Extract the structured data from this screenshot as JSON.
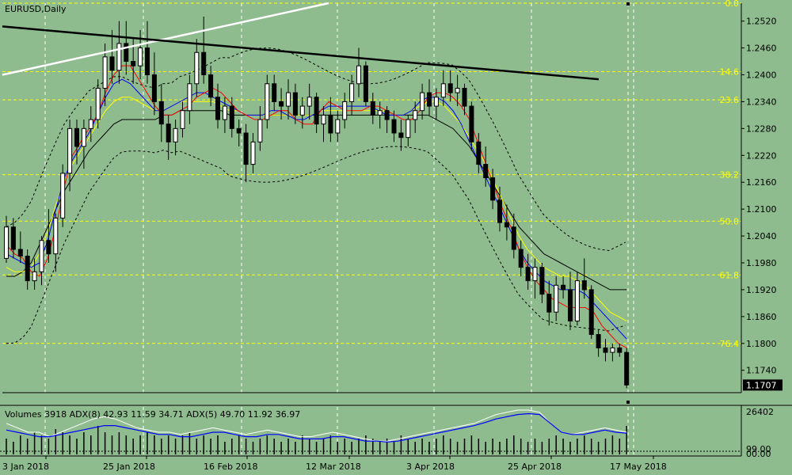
{
  "chart_title": "EURUSD,Daily",
  "indicator_title": "Volumes 3918 ADX(8) 42.93 11.59 34.71 ADX(5) 49.70 11.92 36.97",
  "colors": {
    "background": "#8fbc8f",
    "bull_candle": "#000000",
    "bear_candle": "#000000",
    "grid": "#ffffff",
    "fib": "#ffff00",
    "ma_red": "#ff0000",
    "ma_blue": "#0000ff",
    "ma_yellow": "#ffff00",
    "ma_black": "#000000",
    "trend_white": "#ffffff",
    "trend_black": "#000000"
  },
  "chart_data": {
    "type": "candlestick",
    "symbol": "EURUSD",
    "timeframe": "Daily",
    "ylim": [
      1.169,
      1.256
    ],
    "y_ticks": [
      "1.2520",
      "1.2460",
      "1.2400",
      "1.2340",
      "1.2280",
      "1.2220",
      "1.2160",
      "1.2100",
      "1.2040",
      "1.1980",
      "1.1920",
      "1.1860",
      "1.1800",
      "1.1740"
    ],
    "current_price": "1.1707",
    "x_labels": [
      "3 Jan 2018",
      "25 Jan 2018",
      "16 Feb 2018",
      "12 Mar 2018",
      "3 Apr 2018",
      "25 Apr 2018",
      "17 May 2018"
    ],
    "fib_levels": [
      {
        "label": "0.0",
        "price": 1.256
      },
      {
        "label": "14.6",
        "price": 1.2407
      },
      {
        "label": "23.6",
        "price": 1.2344
      },
      {
        "label": "38.2",
        "price": 1.2177
      },
      {
        "label": "50.0",
        "price": 1.2073
      },
      {
        "label": "61.8",
        "price": 1.1953
      },
      {
        "label": "76.4",
        "price": 1.18
      }
    ],
    "candles": [
      [
        1.199,
        1.2085,
        1.198,
        1.206
      ],
      [
        1.206,
        1.208,
        1.199,
        1.201
      ],
      [
        1.201,
        1.205,
        1.198,
        1.1995
      ],
      [
        1.1995,
        1.201,
        1.192,
        1.194
      ],
      [
        1.194,
        1.199,
        1.192,
        1.196
      ],
      [
        1.196,
        1.204,
        1.193,
        1.203
      ],
      [
        1.203,
        1.21,
        1.198,
        1.2
      ],
      [
        1.2,
        1.209,
        1.196,
        1.208
      ],
      [
        1.208,
        1.22,
        1.206,
        1.218
      ],
      [
        1.218,
        1.23,
        1.214,
        1.228
      ],
      [
        1.228,
        1.23,
        1.22,
        1.224
      ],
      [
        1.224,
        1.23,
        1.219,
        1.228
      ],
      [
        1.228,
        1.233,
        1.225,
        1.23
      ],
      [
        1.23,
        1.239,
        1.228,
        1.237
      ],
      [
        1.237,
        1.247,
        1.233,
        1.244
      ],
      [
        1.244,
        1.25,
        1.238,
        1.241
      ],
      [
        1.241,
        1.252,
        1.238,
        1.247
      ],
      [
        1.247,
        1.252,
        1.24,
        1.243
      ],
      [
        1.243,
        1.248,
        1.238,
        1.242
      ],
      [
        1.242,
        1.25,
        1.239,
        1.246
      ],
      [
        1.246,
        1.252,
        1.238,
        1.24
      ],
      [
        1.24,
        1.245,
        1.231,
        1.234
      ],
      [
        1.234,
        1.238,
        1.225,
        1.229
      ],
      [
        1.229,
        1.231,
        1.221,
        1.225
      ],
      [
        1.225,
        1.23,
        1.222,
        1.228
      ],
      [
        1.228,
        1.234,
        1.226,
        1.232
      ],
      [
        1.232,
        1.24,
        1.229,
        1.238
      ],
      [
        1.238,
        1.248,
        1.235,
        1.245
      ],
      [
        1.245,
        1.253,
        1.238,
        1.24
      ],
      [
        1.24,
        1.242,
        1.233,
        1.235
      ],
      [
        1.235,
        1.238,
        1.228,
        1.23
      ],
      [
        1.23,
        1.235,
        1.227,
        1.233
      ],
      [
        1.233,
        1.235,
        1.226,
        1.228
      ],
      [
        1.228,
        1.23,
        1.224,
        1.227
      ],
      [
        1.227,
        1.229,
        1.216,
        1.22
      ],
      [
        1.22,
        1.227,
        1.218,
        1.225
      ],
      [
        1.225,
        1.233,
        1.223,
        1.23
      ],
      [
        1.23,
        1.24,
        1.228,
        1.238
      ],
      [
        1.238,
        1.24,
        1.232,
        1.234
      ],
      [
        1.234,
        1.237,
        1.23,
        1.233
      ],
      [
        1.233,
        1.239,
        1.23,
        1.236
      ],
      [
        1.236,
        1.238,
        1.229,
        1.231
      ],
      [
        1.231,
        1.235,
        1.228,
        1.233
      ],
      [
        1.233,
        1.238,
        1.23,
        1.235
      ],
      [
        1.235,
        1.236,
        1.227,
        1.229
      ],
      [
        1.229,
        1.233,
        1.225,
        1.231
      ],
      [
        1.231,
        1.235,
        1.225,
        1.227
      ],
      [
        1.227,
        1.232,
        1.225,
        1.23
      ],
      [
        1.23,
        1.236,
        1.228,
        1.234
      ],
      [
        1.234,
        1.24,
        1.231,
        1.238
      ],
      [
        1.238,
        1.246,
        1.235,
        1.242
      ],
      [
        1.242,
        1.243,
        1.233,
        1.234
      ],
      [
        1.234,
        1.236,
        1.229,
        1.231
      ],
      [
        1.231,
        1.234,
        1.228,
        1.232
      ],
      [
        1.232,
        1.233,
        1.227,
        1.23
      ],
      [
        1.23,
        1.232,
        1.225,
        1.227
      ],
      [
        1.227,
        1.23,
        1.223,
        1.226
      ],
      [
        1.226,
        1.231,
        1.224,
        1.23
      ],
      [
        1.23,
        1.234,
        1.227,
        1.232
      ],
      [
        1.232,
        1.238,
        1.23,
        1.236
      ],
      [
        1.236,
        1.239,
        1.231,
        1.233
      ],
      [
        1.233,
        1.237,
        1.23,
        1.235
      ],
      [
        1.235,
        1.241,
        1.233,
        1.238
      ],
      [
        1.238,
        1.241,
        1.234,
        1.236
      ],
      [
        1.236,
        1.24,
        1.233,
        1.237
      ],
      [
        1.237,
        1.238,
        1.231,
        1.233
      ],
      [
        1.233,
        1.234,
        1.223,
        1.225
      ],
      [
        1.225,
        1.227,
        1.218,
        1.22
      ],
      [
        1.22,
        1.224,
        1.215,
        1.217
      ],
      [
        1.217,
        1.219,
        1.21,
        1.212
      ],
      [
        1.212,
        1.215,
        1.205,
        1.207
      ],
      [
        1.207,
        1.211,
        1.203,
        1.206
      ],
      [
        1.206,
        1.209,
        1.199,
        1.201
      ],
      [
        1.201,
        1.203,
        1.195,
        1.197
      ],
      [
        1.197,
        1.2,
        1.192,
        1.194
      ],
      [
        1.194,
        1.199,
        1.19,
        1.197
      ],
      [
        1.197,
        1.198,
        1.189,
        1.191
      ],
      [
        1.191,
        1.194,
        1.184,
        1.187
      ],
      [
        1.187,
        1.195,
        1.185,
        1.193
      ],
      [
        1.193,
        1.195,
        1.19,
        1.192
      ],
      [
        1.192,
        1.196,
        1.183,
        1.185
      ],
      [
        1.185,
        1.196,
        1.184,
        1.194
      ],
      [
        1.194,
        1.199,
        1.19,
        1.192
      ],
      [
        1.192,
        1.193,
        1.181,
        1.182
      ],
      [
        1.182,
        1.183,
        1.177,
        1.179
      ],
      [
        1.179,
        1.181,
        1.176,
        1.178
      ],
      [
        1.178,
        1.18,
        1.176,
        1.179
      ],
      [
        1.179,
        1.18,
        1.177,
        1.178
      ],
      [
        1.178,
        1.179,
        1.17,
        1.1707
      ]
    ],
    "ma_red": [
      1.202,
      1.2,
      1.199,
      1.196,
      1.195,
      1.199,
      1.206,
      1.215,
      1.222,
      1.225,
      1.228,
      1.231,
      1.236,
      1.24,
      1.242,
      1.242,
      1.239,
      1.236,
      1.233,
      1.231,
      1.231,
      1.232,
      1.233,
      1.235,
      1.236,
      1.237,
      1.236,
      1.234,
      1.232,
      1.231,
      1.23,
      1.23,
      1.231,
      1.232,
      1.232,
      1.23,
      1.229,
      1.229,
      1.232,
      1.234,
      1.233,
      1.232,
      1.232,
      1.232,
      1.233,
      1.233,
      1.232,
      1.231,
      1.23,
      1.23,
      1.232,
      1.235,
      1.236,
      1.236,
      1.235,
      1.233,
      1.23,
      1.225,
      1.22,
      1.215,
      1.21,
      1.206,
      1.201,
      1.197,
      1.194,
      1.192,
      1.19,
      1.189,
      1.188,
      1.188,
      1.188,
      1.187,
      1.184,
      1.182,
      1.18,
      1.179
    ],
    "ma_blue": [
      1.2,
      1.199,
      1.198,
      1.197,
      1.198,
      1.203,
      1.21,
      1.217,
      1.221,
      1.224,
      1.227,
      1.231,
      1.235,
      1.238,
      1.239,
      1.238,
      1.236,
      1.234,
      1.232,
      1.232,
      1.233,
      1.234,
      1.235,
      1.236,
      1.236,
      1.235,
      1.234,
      1.233,
      1.232,
      1.231,
      1.231,
      1.231,
      1.232,
      1.232,
      1.231,
      1.23,
      1.23,
      1.231,
      1.232,
      1.233,
      1.233,
      1.233,
      1.233,
      1.233,
      1.233,
      1.232,
      1.231,
      1.231,
      1.231,
      1.232,
      1.234,
      1.235,
      1.235,
      1.234,
      1.232,
      1.229,
      1.225,
      1.221,
      1.217,
      1.213,
      1.209,
      1.205,
      1.201,
      1.198,
      1.196,
      1.194,
      1.193,
      1.192,
      1.192,
      1.192,
      1.191,
      1.189,
      1.187,
      1.185,
      1.183,
      1.181
    ],
    "ma_yellow": [
      1.197,
      1.196,
      1.196,
      1.197,
      1.2,
      1.205,
      1.211,
      1.216,
      1.22,
      1.223,
      1.226,
      1.229,
      1.232,
      1.234,
      1.235,
      1.235,
      1.234,
      1.233,
      1.232,
      1.232,
      1.233,
      1.234,
      1.234,
      1.234,
      1.234,
      1.234,
      1.233,
      1.232,
      1.232,
      1.231,
      1.231,
      1.231,
      1.231,
      1.231,
      1.231,
      1.231,
      1.231,
      1.231,
      1.232,
      1.232,
      1.232,
      1.232,
      1.232,
      1.232,
      1.232,
      1.232,
      1.232,
      1.231,
      1.231,
      1.232,
      1.233,
      1.234,
      1.234,
      1.233,
      1.231,
      1.229,
      1.226,
      1.223,
      1.22,
      1.216,
      1.212,
      1.208,
      1.204,
      1.201,
      1.199,
      1.197,
      1.196,
      1.195,
      1.195,
      1.194,
      1.193,
      1.191,
      1.189,
      1.187,
      1.186,
      1.185
    ],
    "ma_black": [
      1.195,
      1.195,
      1.196,
      1.198,
      1.202,
      1.206,
      1.21,
      1.214,
      1.217,
      1.22,
      1.223,
      1.225,
      1.227,
      1.229,
      1.23,
      1.23,
      1.23,
      1.23,
      1.23,
      1.231,
      1.231,
      1.232,
      1.232,
      1.232,
      1.232,
      1.232,
      1.232,
      1.231,
      1.231,
      1.231,
      1.231,
      1.231,
      1.231,
      1.231,
      1.231,
      1.231,
      1.231,
      1.231,
      1.231,
      1.231,
      1.231,
      1.231,
      1.231,
      1.231,
      1.231,
      1.231,
      1.231,
      1.231,
      1.231,
      1.231,
      1.231,
      1.231,
      1.23,
      1.229,
      1.228,
      1.226,
      1.224,
      1.221,
      1.218,
      1.215,
      1.212,
      1.209,
      1.206,
      1.204,
      1.202,
      1.2,
      1.199,
      1.198,
      1.197,
      1.196,
      1.195,
      1.194,
      1.193,
      1.192,
      1.192,
      1.192
    ],
    "indicator": {
      "y_ticks": [
        "26402",
        "99.00",
        "00.00"
      ],
      "volumes": [
        0.5,
        0.4,
        0.6,
        0.5,
        0.7,
        0.6,
        0.5,
        0.8,
        0.7,
        0.6,
        0.5,
        0.7,
        0.6,
        0.9,
        0.7,
        0.6,
        0.7,
        0.6,
        0.5,
        0.6,
        0.7,
        0.6,
        0.5,
        0.6,
        0.5,
        0.6,
        0.7,
        0.5,
        0.6,
        0.5,
        0.6,
        0.4,
        0.5,
        0.6,
        0.5,
        0.4,
        0.5,
        0.6,
        0.5,
        0.4,
        0.5,
        0.4,
        0.6,
        0.5,
        0.4,
        0.5,
        0.6,
        0.4,
        0.5,
        0.4,
        0.5,
        0.6,
        0.5,
        0.4,
        0.5,
        0.4,
        0.6,
        0.5,
        0.4,
        0.5,
        0.4,
        0.5,
        0.6,
        0.5,
        0.4,
        0.5,
        0.6,
        0.5,
        0.4,
        0.5,
        0.4,
        0.5,
        0.6,
        0.5,
        0.4,
        0.5,
        0.4,
        0.5,
        0.6,
        0.5,
        0.4,
        0.5,
        0.6,
        0.5,
        0.4,
        0.5,
        0.6,
        0.5,
        0.9
      ],
      "adx_white": [
        0.7,
        0.6,
        0.5,
        0.5,
        0.4,
        0.5,
        0.6,
        0.7,
        0.8,
        0.85,
        0.8,
        0.7,
        0.6,
        0.55,
        0.5,
        0.5,
        0.45,
        0.5,
        0.55,
        0.6,
        0.55,
        0.5,
        0.45,
        0.5,
        0.55,
        0.5,
        0.45,
        0.4,
        0.4,
        0.45,
        0.5,
        0.45,
        0.4,
        0.35,
        0.3,
        0.3,
        0.35,
        0.4,
        0.45,
        0.5,
        0.55,
        0.6,
        0.65,
        0.7,
        0.8,
        0.9,
        0.95,
        1.0,
        1.0,
        0.95,
        0.7,
        0.5,
        0.45,
        0.5,
        0.55,
        0.6,
        0.55,
        0.5
      ],
      "adx_blue": [
        0.55,
        0.5,
        0.45,
        0.4,
        0.4,
        0.45,
        0.5,
        0.55,
        0.6,
        0.65,
        0.65,
        0.6,
        0.55,
        0.5,
        0.45,
        0.45,
        0.4,
        0.4,
        0.45,
        0.5,
        0.5,
        0.45,
        0.4,
        0.4,
        0.45,
        0.45,
        0.4,
        0.35,
        0.35,
        0.35,
        0.4,
        0.4,
        0.35,
        0.3,
        0.3,
        0.28,
        0.3,
        0.35,
        0.4,
        0.45,
        0.5,
        0.55,
        0.6,
        0.65,
        0.72,
        0.8,
        0.85,
        0.9,
        0.92,
        0.9,
        0.7,
        0.5,
        0.45,
        0.45,
        0.5,
        0.55,
        0.5,
        0.48
      ]
    }
  }
}
